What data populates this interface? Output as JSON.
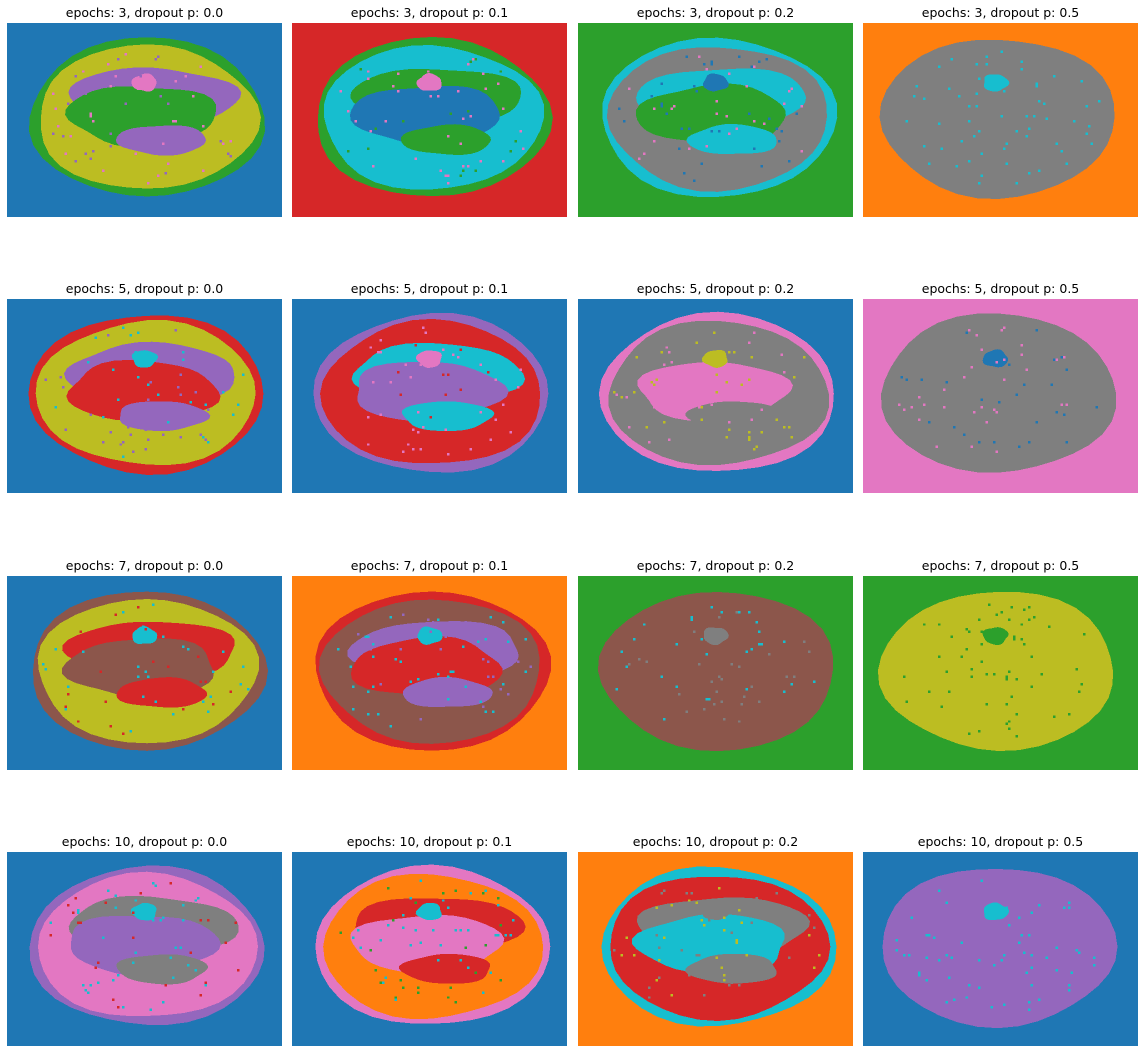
{
  "figure": {
    "panels": [
      {
        "title": "epochs: 3, dropout p: 0.0",
        "colors": {
          "background": "#1f77b4",
          "outer": "#2ca02c",
          "band": "#bcbd22",
          "inner": "#9467bd",
          "core": "#2ca02c",
          "spot": "#e377c2",
          "speckle": "#9467bd"
        }
      },
      {
        "title": "epochs: 3, dropout p: 0.1",
        "colors": {
          "background": "#d62728",
          "outer": "#2ca02c",
          "band": "#17becf",
          "inner": "#2ca02c",
          "core": "#1f77b4",
          "spot": "#e377c2",
          "speckle": "#2ca02c"
        }
      },
      {
        "title": "epochs: 3, dropout p: 0.2",
        "colors": {
          "background": "#2ca02c",
          "outer": "#17becf",
          "band": "#7f7f7f",
          "inner": "#17becf",
          "core": "#2ca02c",
          "spot": "#1f77b4",
          "speckle": "#e377c2"
        }
      },
      {
        "title": "epochs: 3, dropout p: 0.5",
        "colors": {
          "background": "#ff7f0e",
          "outer": "#7f7f7f",
          "band": "#7f7f7f",
          "inner": "#7f7f7f",
          "core": "#7f7f7f",
          "spot": "#17becf",
          "speckle": "#17becf"
        }
      },
      {
        "title": "epochs: 5, dropout p: 0.0",
        "colors": {
          "background": "#1f77b4",
          "outer": "#d62728",
          "band": "#bcbd22",
          "inner": "#9467bd",
          "core": "#d62728",
          "spot": "#17becf",
          "speckle": "#9467bd"
        }
      },
      {
        "title": "epochs: 5, dropout p: 0.1",
        "colors": {
          "background": "#1f77b4",
          "outer": "#9467bd",
          "band": "#d62728",
          "inner": "#17becf",
          "core": "#9467bd",
          "spot": "#e377c2",
          "speckle": "#d62728"
        }
      },
      {
        "title": "epochs: 5, dropout p: 0.2",
        "colors": {
          "background": "#1f77b4",
          "outer": "#e377c2",
          "band": "#7f7f7f",
          "inner": "#7f7f7f",
          "core": "#e377c2",
          "spot": "#bcbd22",
          "speckle": "#e377c2"
        }
      },
      {
        "title": "epochs: 5, dropout p: 0.5",
        "colors": {
          "background": "#e377c2",
          "outer": "#7f7f7f",
          "band": "#7f7f7f",
          "inner": "#7f7f7f",
          "core": "#7f7f7f",
          "spot": "#1f77b4",
          "speckle": "#e377c2"
        }
      },
      {
        "title": "epochs: 7, dropout p: 0.0",
        "colors": {
          "background": "#1f77b4",
          "outer": "#8c564b",
          "band": "#bcbd22",
          "inner": "#d62728",
          "core": "#8c564b",
          "spot": "#17becf",
          "speckle": "#d62728"
        }
      },
      {
        "title": "epochs: 7, dropout p: 0.1",
        "colors": {
          "background": "#ff7f0e",
          "outer": "#d62728",
          "band": "#8c564b",
          "inner": "#9467bd",
          "core": "#d62728",
          "spot": "#17becf",
          "speckle": "#9467bd"
        }
      },
      {
        "title": "epochs: 7, dropout p: 0.2",
        "colors": {
          "background": "#2ca02c",
          "outer": "#8c564b",
          "band": "#8c564b",
          "inner": "#8c564b",
          "core": "#8c564b",
          "spot": "#7f7f7f",
          "speckle": "#17becf"
        }
      },
      {
        "title": "epochs: 7, dropout p: 0.5",
        "colors": {
          "background": "#2ca02c",
          "outer": "#bcbd22",
          "band": "#bcbd22",
          "inner": "#bcbd22",
          "core": "#bcbd22",
          "spot": "#2ca02c",
          "speckle": "#2ca02c"
        }
      },
      {
        "title": "epochs: 10, dropout p: 0.0",
        "colors": {
          "background": "#1f77b4",
          "outer": "#9467bd",
          "band": "#e377c2",
          "inner": "#7f7f7f",
          "core": "#9467bd",
          "spot": "#17becf",
          "speckle": "#d62728"
        }
      },
      {
        "title": "epochs: 10, dropout p: 0.1",
        "colors": {
          "background": "#1f77b4",
          "outer": "#e377c2",
          "band": "#ff7f0e",
          "inner": "#d62728",
          "core": "#e377c2",
          "spot": "#17becf",
          "speckle": "#2ca02c"
        }
      },
      {
        "title": "epochs: 10, dropout p: 0.2",
        "colors": {
          "background": "#ff7f0e",
          "outer": "#17becf",
          "band": "#d62728",
          "inner": "#7f7f7f",
          "core": "#17becf",
          "spot": "#7f7f7f",
          "speckle": "#bcbd22"
        }
      },
      {
        "title": "epochs: 10, dropout p: 0.5",
        "colors": {
          "background": "#1f77b4",
          "outer": "#9467bd",
          "band": "#9467bd",
          "inner": "#9467bd",
          "core": "#9467bd",
          "spot": "#17becf",
          "speckle": "#17becf"
        }
      }
    ]
  }
}
